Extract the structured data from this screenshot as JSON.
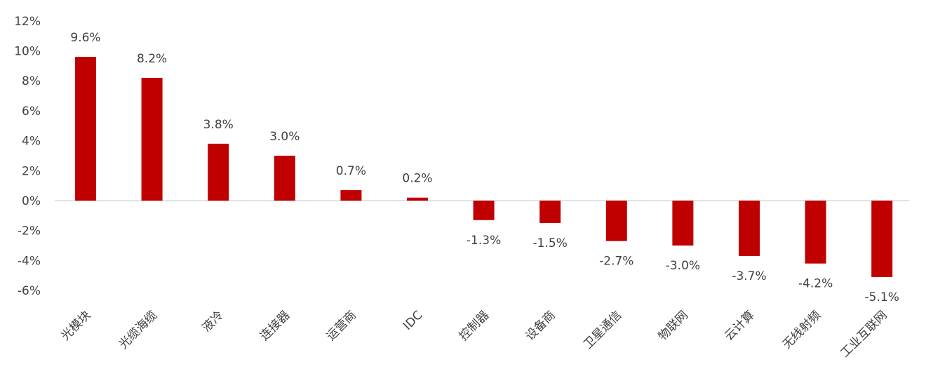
{
  "chart_data": {
    "type": "bar",
    "categories": [
      "光模块",
      "光缆海缆",
      "液冷",
      "连接器",
      "运营商",
      "IDC",
      "控制器",
      "设备商",
      "卫星通信",
      "物联网",
      "云计算",
      "无线射频",
      "工业互联网"
    ],
    "values": [
      9.6,
      8.2,
      3.8,
      3.0,
      0.7,
      0.2,
      -1.3,
      -1.5,
      -2.7,
      -3.0,
      -3.7,
      -4.2,
      -5.1
    ],
    "value_labels": [
      "9.6%",
      "8.2%",
      "3.8%",
      "3.0%",
      "0.7%",
      "0.2%",
      "-1.3%",
      "-1.5%",
      "-2.7%",
      "-3.0%",
      "-3.7%",
      "-4.2%",
      "-5.1%"
    ],
    "y_ticks": [
      12,
      10,
      8,
      6,
      4,
      2,
      0,
      -2,
      -4,
      -6
    ],
    "y_tick_labels": [
      "12%",
      "10%",
      "8%",
      "6%",
      "4%",
      "2%",
      "0%",
      "-2%",
      "-4%",
      "-6%"
    ],
    "ylim": [
      -6,
      12
    ],
    "unit": "%",
    "bar_color": "#c00000",
    "grid": false,
    "legend": "none"
  }
}
